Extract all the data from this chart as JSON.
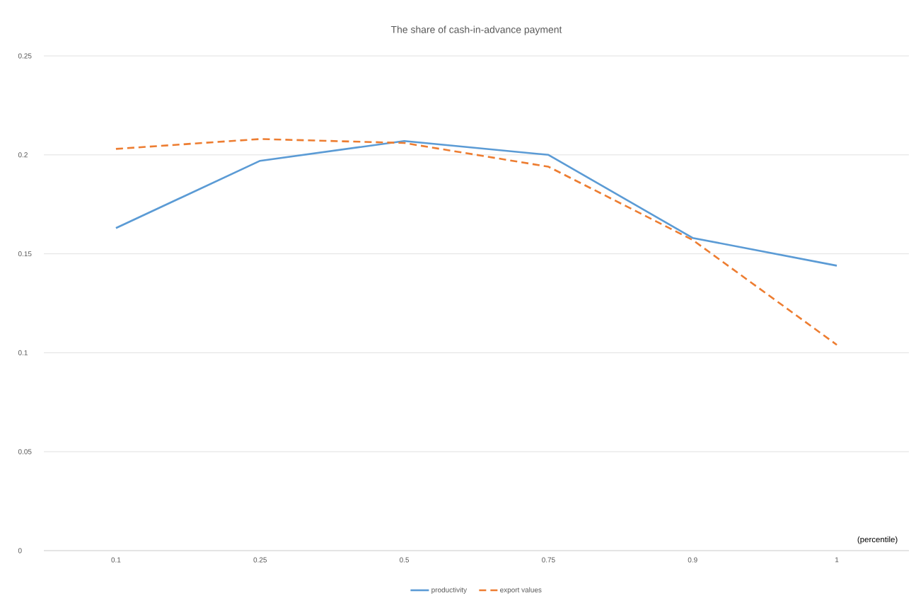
{
  "chart_data": {
    "type": "line",
    "title": "The share of cash-in-advance payment",
    "xlabel": "(percentile)",
    "categories": [
      "0.1",
      "0.25",
      "0.5",
      "0.75",
      "0.9",
      "1"
    ],
    "series": [
      {
        "name": "productivity",
        "color": "#5b9bd5",
        "line_style": "solid",
        "values": [
          0.163,
          0.197,
          0.207,
          0.2,
          0.158,
          0.144
        ]
      },
      {
        "name": "export values",
        "color": "#ed7d31",
        "line_style": "dashed",
        "values": [
          0.203,
          0.208,
          0.206,
          0.194,
          0.157,
          0.104
        ]
      }
    ],
    "ylim": [
      0,
      0.25
    ],
    "yticks": [
      0,
      0.05,
      0.1,
      0.15,
      0.2,
      0.25
    ],
    "grid": "y",
    "legend": "bottom",
    "marker": "none"
  }
}
